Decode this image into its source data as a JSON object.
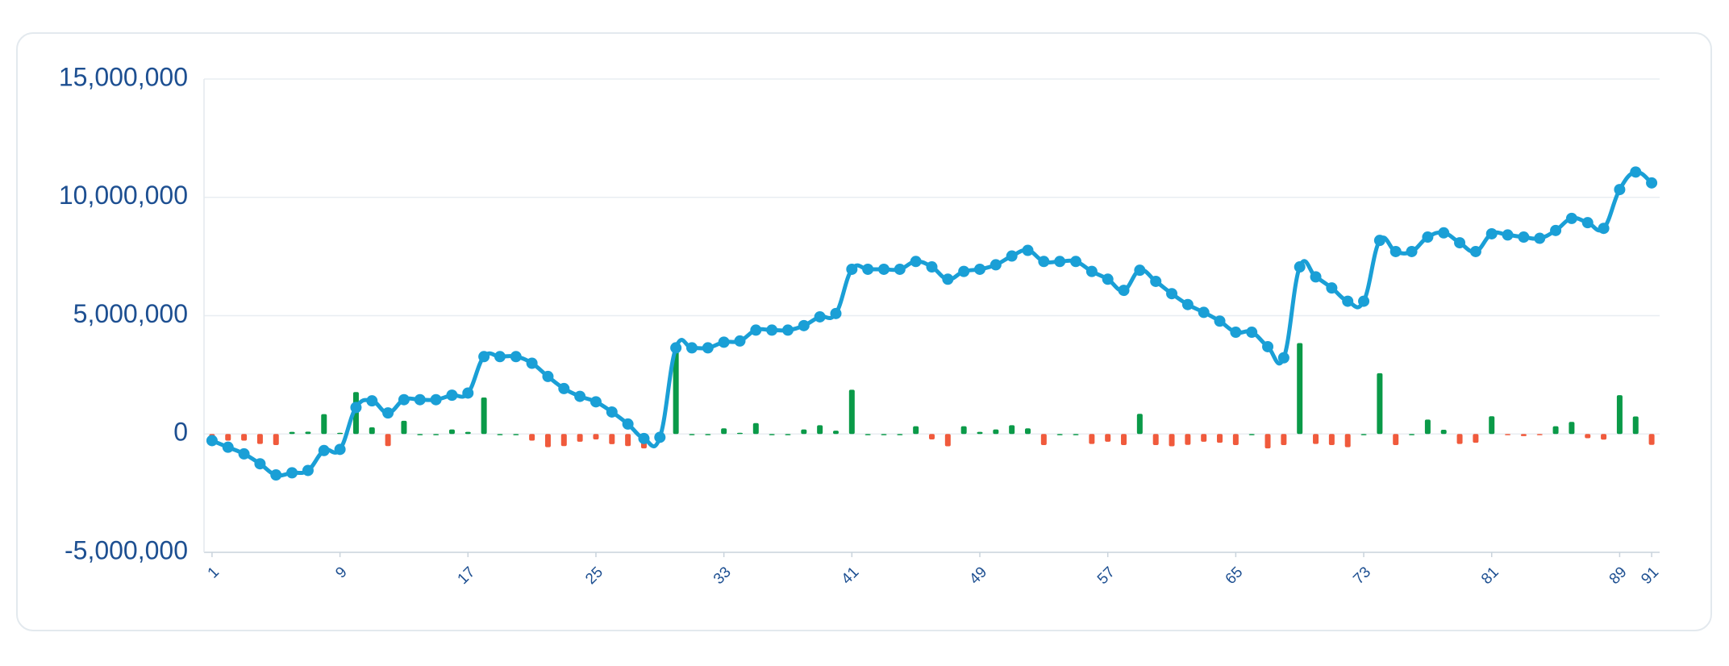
{
  "chart_data": {
    "type": "combo",
    "x": [
      1,
      2,
      3,
      4,
      5,
      6,
      7,
      8,
      9,
      10,
      11,
      12,
      13,
      14,
      15,
      16,
      17,
      18,
      19,
      20,
      21,
      22,
      23,
      24,
      25,
      26,
      27,
      28,
      29,
      30,
      31,
      32,
      33,
      34,
      35,
      36,
      37,
      38,
      39,
      40,
      41,
      42,
      43,
      44,
      45,
      46,
      47,
      48,
      49,
      50,
      51,
      52,
      53,
      54,
      55,
      56,
      57,
      58,
      59,
      60,
      61,
      62,
      63,
      64,
      65,
      66,
      67,
      68,
      69,
      70,
      71,
      72,
      73,
      74,
      75,
      76,
      77,
      78,
      79,
      80,
      81,
      82,
      83,
      84,
      85,
      86,
      87,
      88,
      89,
      90,
      91
    ],
    "xlim": [
      0.5,
      91.5
    ],
    "xticks": [
      1,
      9,
      17,
      25,
      33,
      41,
      49,
      57,
      65,
      73,
      81,
      89,
      91
    ],
    "ylim": [
      -5000000,
      15000000
    ],
    "yticks": [
      {
        "value": -5000000,
        "label": "-5,000,000"
      },
      0,
      {
        "value": 5000000,
        "label": "5,000,000"
      },
      {
        "value": 10000000,
        "label": "10,000,000"
      },
      {
        "value": 15000000,
        "label": "15,000,000"
      }
    ],
    "grid": true,
    "series": [
      {
        "type": "bar",
        "color": "#0a9a48",
        "negative_color": "#f05a3c",
        "values": [
          -280000,
          -280000,
          -280000,
          -420000,
          -470000,
          90000,
          100000,
          840000,
          50000,
          1770000,
          280000,
          -510000,
          560000,
          0,
          0,
          190000,
          90000,
          1540000,
          0,
          0,
          -280000,
          -560000,
          -510000,
          -330000,
          -230000,
          -430000,
          -510000,
          -610000,
          50000,
          3780000,
          0,
          0,
          240000,
          50000,
          460000,
          0,
          0,
          190000,
          370000,
          140000,
          1870000,
          0,
          0,
          0,
          330000,
          -230000,
          -520000,
          330000,
          90000,
          190000,
          370000,
          240000,
          -470000,
          0,
          0,
          -420000,
          -330000,
          -470000,
          850000,
          -470000,
          -520000,
          -460000,
          -330000,
          -370000,
          -470000,
          0,
          -610000,
          -470000,
          3840000,
          -420000,
          -470000,
          -560000,
          0,
          2570000,
          -470000,
          0,
          610000,
          180000,
          -420000,
          -370000,
          750000,
          -50000,
          -90000,
          -50000,
          330000,
          510000,
          -180000,
          -240000,
          1640000,
          740000,
          -460000
        ]
      },
      {
        "type": "line",
        "color": "#1a9fd6",
        "values": [
          -280000,
          -560000,
          -840000,
          -1260000,
          -1730000,
          -1640000,
          -1540000,
          -700000,
          -650000,
          1120000,
          1400000,
          890000,
          1450000,
          1450000,
          1450000,
          1640000,
          1730000,
          3270000,
          3270000,
          3270000,
          2990000,
          2430000,
          1920000,
          1590000,
          1360000,
          930000,
          420000,
          -190000,
          -140000,
          3640000,
          3640000,
          3640000,
          3880000,
          3930000,
          4390000,
          4390000,
          4390000,
          4580000,
          4950000,
          5090000,
          6960000,
          6960000,
          6960000,
          6960000,
          7290000,
          7060000,
          6540000,
          6870000,
          6960000,
          7150000,
          7520000,
          7760000,
          7290000,
          7290000,
          7290000,
          6870000,
          6540000,
          6070000,
          6920000,
          6450000,
          5930000,
          5470000,
          5140000,
          4770000,
          4300000,
          4300000,
          3690000,
          3220000,
          7060000,
          6640000,
          6170000,
          5610000,
          5610000,
          8180000,
          7710000,
          7710000,
          8320000,
          8500000,
          8080000,
          7710000,
          8460000,
          8410000,
          8320000,
          8270000,
          8600000,
          9110000,
          8930000,
          8690000,
          10330000,
          11070000,
          10610000
        ]
      }
    ]
  }
}
